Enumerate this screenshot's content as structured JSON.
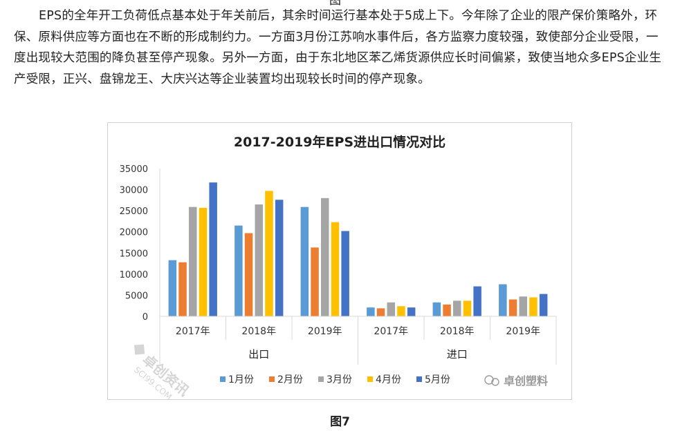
{
  "top_mark": "图",
  "paragraph": "EPS的全年开工负荷低点基本处于年关前后，其余时间运行基本处于5成上下。今年除了企业的限产保价策略外，环保、原料供应等方面也在不断的形成制约力。一方面3月份江苏响水事件后，各方监察力度较强，致使部分企业受限，一度出现较大范围的降负甚至停产现象。另外一方面，由于东北地区苯乙烯货源供应长时间偏紧，致使当地众多EPS企业生产受限，正兴、盘锦龙王、大庆兴达等企业装置均出现较长时间的停产现象。",
  "caption": "图7",
  "watermark": "卓创资讯",
  "watermark_url": "SCI99.COM",
  "brand": "卓创塑料",
  "colors": {
    "series": [
      "#5b9bd5",
      "#ed7d31",
      "#a5a5a5",
      "#ffc000",
      "#4472c4"
    ],
    "axis": "#d9d9d9"
  },
  "chart_data": {
    "type": "bar",
    "title": "2017-2019年EPS进出口情况对比",
    "groups": [
      "出口",
      "进口"
    ],
    "categories": [
      "2017年",
      "2018年",
      "2019年",
      "2017年",
      "2018年",
      "2019年"
    ],
    "series": [
      {
        "name": "1月份",
        "values": [
          13300,
          21500,
          25900,
          2100,
          3300,
          7600
        ]
      },
      {
        "name": "2月份",
        "values": [
          12800,
          19700,
          16300,
          1900,
          2800,
          4000
        ]
      },
      {
        "name": "3月份",
        "values": [
          25900,
          26500,
          28000,
          3300,
          3700,
          4700
        ]
      },
      {
        "name": "4月份",
        "values": [
          25700,
          29700,
          22300,
          2400,
          3700,
          4500
        ]
      },
      {
        "name": "5月份",
        "values": [
          31700,
          27600,
          20200,
          2100,
          7100,
          5300
        ]
      }
    ],
    "ylim": [
      0,
      35000
    ],
    "yticks": [
      "0",
      "5000",
      "10000",
      "15000",
      "20000",
      "25000",
      "30000",
      "35000"
    ],
    "legend_position": "bottom",
    "grid": false
  }
}
